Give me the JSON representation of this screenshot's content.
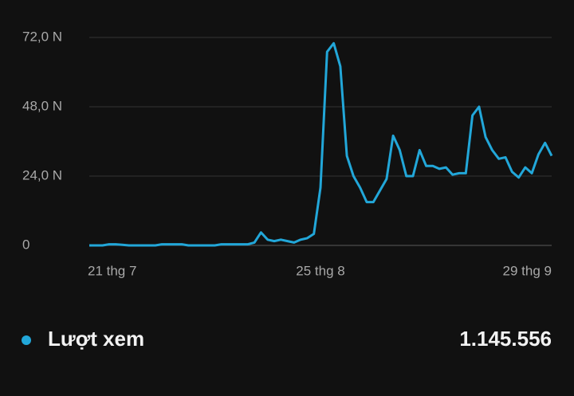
{
  "chart_data": {
    "type": "line",
    "categories": [
      "21 thg 7",
      null,
      null,
      null,
      null,
      null,
      null,
      null,
      null,
      null,
      null,
      null,
      null,
      null,
      null,
      null,
      null,
      null,
      null,
      null,
      null,
      null,
      null,
      null,
      null,
      null,
      null,
      null,
      null,
      null,
      null,
      null,
      null,
      null,
      null,
      "25 thg 8",
      null,
      null,
      null,
      null,
      null,
      null,
      null,
      null,
      null,
      null,
      null,
      null,
      null,
      null,
      null,
      null,
      null,
      null,
      null,
      null,
      null,
      null,
      null,
      null,
      null,
      null,
      null,
      null,
      null,
      null,
      null,
      null,
      null,
      null,
      "29 thg 9"
    ],
    "series": [
      {
        "name": "Lượt xem",
        "color": "#22a7d9",
        "values": [
          0,
          0,
          0,
          0.4,
          0.4,
          0.2,
          0,
          0,
          0,
          0,
          0,
          0.4,
          0.4,
          0.4,
          0.4,
          0,
          0,
          0,
          0,
          0,
          0.4,
          0.4,
          0.4,
          0.4,
          0.4,
          1,
          4.5,
          2,
          1.5,
          2,
          1.5,
          1,
          2,
          2.5,
          4,
          20,
          67,
          70,
          62,
          31,
          24,
          20,
          15,
          15,
          19,
          23,
          38,
          33,
          24,
          24,
          33,
          27.5,
          27.5,
          26.5,
          27,
          24.5,
          25,
          25,
          45,
          48,
          37.5,
          33,
          30,
          30.5,
          25.5,
          23.5,
          27,
          25,
          31.5,
          35.5,
          31
        ]
      }
    ],
    "total": "1.145.556",
    "ylim": [
      0,
      72
    ],
    "yticks": [
      0,
      {
        "value": 24,
        "label": "24,0 N"
      },
      {
        "value": 48,
        "label": "48,0 N"
      },
      {
        "value": 72,
        "label": "72,0 N"
      }
    ],
    "grid": true
  }
}
